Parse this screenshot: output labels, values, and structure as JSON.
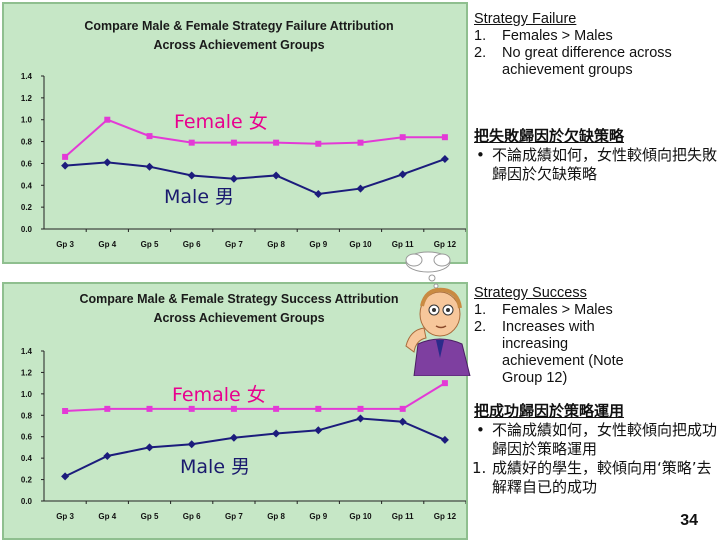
{
  "chart_data": [
    {
      "type": "line",
      "title": "Compare Male & Female Strategy Failure Attribution",
      "subtitle": "Across Achievement Groups",
      "categories": [
        "Gp 3",
        "Gp 4",
        "Gp 5",
        "Gp 6",
        "Gp 7",
        "Gp 8",
        "Gp 9",
        "Gp 10",
        "Gp 11",
        "Gp 12"
      ],
      "series": [
        {
          "name": "Female 女",
          "color": "#e33ad6",
          "values": [
            0.66,
            1.0,
            0.85,
            0.79,
            0.79,
            0.79,
            0.78,
            0.79,
            0.84,
            0.84
          ]
        },
        {
          "name": "Male 男",
          "color": "#1c1c7c",
          "values": [
            0.58,
            0.61,
            0.57,
            0.49,
            0.46,
            0.49,
            0.32,
            0.37,
            0.5,
            0.64
          ]
        }
      ],
      "yticks": [
        "0.0",
        "0.2",
        "0.4",
        "0.6",
        "0.8",
        "1.0",
        "1.2",
        "1.4"
      ],
      "ylim": [
        0,
        1.4
      ],
      "grid": false
    },
    {
      "type": "line",
      "title": "Compare Male & Female Strategy Success Attribution",
      "subtitle": "Across Achievement Groups",
      "categories": [
        "Gp 3",
        "Gp 4",
        "Gp 5",
        "Gp 6",
        "Gp 7",
        "Gp 8",
        "Gp 9",
        "Gp 10",
        "Gp 11",
        "Gp 12"
      ],
      "series": [
        {
          "name": "Female 女",
          "color": "#e33ad6",
          "values": [
            0.84,
            0.86,
            0.86,
            0.86,
            0.86,
            0.86,
            0.86,
            0.86,
            0.86,
            1.1
          ]
        },
        {
          "name": "Male 男",
          "color": "#1c1c7c",
          "values": [
            0.23,
            0.42,
            0.5,
            0.53,
            0.59,
            0.63,
            0.66,
            0.77,
            0.74,
            0.57
          ]
        }
      ],
      "yticks": [
        "0.0",
        "0.2",
        "0.4",
        "0.6",
        "0.8",
        "1.0",
        "1.2",
        "1.4"
      ],
      "ylim": [
        0,
        1.4
      ],
      "grid": false
    }
  ],
  "notes": {
    "failure": {
      "heading": "Strategy Failure",
      "items": [
        {
          "num": "1.",
          "text": "Females > Males"
        },
        {
          "num": "2.",
          "text": "No great difference across achievement groups"
        }
      ],
      "cn_heading": "把失敗歸因於欠缺策略",
      "cn_bullet": "不論成績如何，女性較傾向把失敗歸因於欠缺策略",
      "bullet_mark": "•"
    },
    "success": {
      "heading": "Strategy Success",
      "items": [
        {
          "num": "1.",
          "text": "Females > Males"
        },
        {
          "num": "2.",
          "text": "Increases with increasing achievement (Note Group 12)"
        }
      ],
      "cn_heading": "把成功歸因於策略運用",
      "cn_bullet": "不論成績如何，女性較傾向把成功歸因於策略運用",
      "cn_item_num": "1.",
      "cn_item": "成績好的學生，較傾向用‘策略’去解釋自已的成功",
      "bullet_mark": "•"
    }
  },
  "page_number": "34",
  "colors": {
    "panel_bg": "#c6e7c6",
    "female": "#e33ad6",
    "male": "#1c1c7c"
  }
}
